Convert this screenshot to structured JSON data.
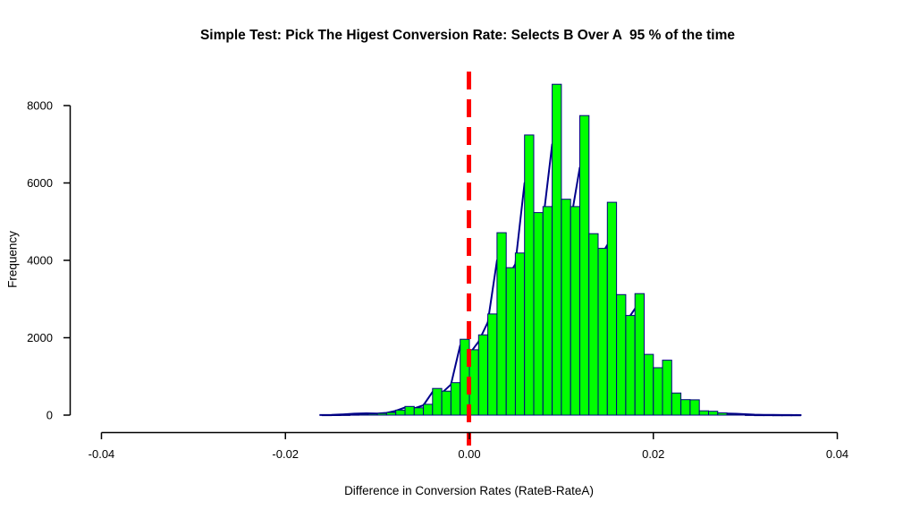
{
  "title": "Simple Test: Pick The Higest Conversion Rate: Selects B Over A  95 % of the time",
  "chart_data": {
    "type": "bar",
    "subtype": "histogram",
    "title": "Simple Test: Pick The Higest Conversion Rate: Selects B Over A  95 % of the time",
    "xlabel": "Difference in Conversion Rates (RateB-RateA)",
    "ylabel": "Frequency",
    "xlim": [
      -0.04,
      0.04
    ],
    "ylim": [
      0,
      8000
    ],
    "grid": false,
    "legend": "none",
    "x_ticks": [
      {
        "v": -0.04,
        "label": "-0.04"
      },
      {
        "v": -0.02,
        "label": "-0.02"
      },
      {
        "v": 0.0,
        "label": "0.00"
      },
      {
        "v": 0.02,
        "label": "0.02"
      },
      {
        "v": 0.04,
        "label": "0.04"
      }
    ],
    "y_ticks": [
      {
        "v": 0,
        "label": "0"
      },
      {
        "v": 2000,
        "label": "2000"
      },
      {
        "v": 4000,
        "label": "4000"
      },
      {
        "v": 6000,
        "label": "6000"
      },
      {
        "v": 8000,
        "label": "8000"
      }
    ],
    "bin_start": -0.016,
    "bin_width": 0.001,
    "frequencies": [
      4,
      6,
      10,
      16,
      25,
      30,
      45,
      70,
      130,
      225,
      190,
      280,
      690,
      620,
      840,
      1960,
      1690,
      2075,
      2615,
      4715,
      3810,
      4190,
      7240,
      5235,
      5390,
      8550,
      5580,
      5390,
      7740,
      4690,
      4310,
      5500,
      3115,
      2575,
      3140,
      1570,
      1225,
      1420,
      570,
      400,
      395,
      110,
      100,
      55,
      25,
      20,
      10,
      5,
      4,
      3,
      2,
      2
    ],
    "bar_fill": "#00FF00",
    "bar_border": "#000080",
    "vline": {
      "x": 0.0,
      "color": "#FF0000",
      "style": "dashed",
      "width": 5
    },
    "curve": {
      "color": "#00008B",
      "points": [
        [
          -0.0163,
          2
        ],
        [
          -0.015,
          8
        ],
        [
          -0.0138,
          18
        ],
        [
          -0.0125,
          38
        ],
        [
          -0.0112,
          46
        ],
        [
          -0.01,
          40
        ],
        [
          -0.009,
          58
        ],
        [
          -0.008,
          110
        ],
        [
          -0.007,
          200
        ],
        [
          -0.006,
          175
        ],
        [
          -0.005,
          255
        ],
        [
          -0.004,
          600
        ],
        [
          -0.003,
          570
        ],
        [
          -0.002,
          790
        ],
        [
          -0.001,
          1800
        ],
        [
          0.0,
          1580
        ],
        [
          0.001,
          1900
        ],
        [
          0.002,
          2400
        ],
        [
          0.003,
          4000
        ],
        [
          0.004,
          3500
        ],
        [
          0.005,
          3900
        ],
        [
          0.006,
          6000
        ],
        [
          0.007,
          4900
        ],
        [
          0.008,
          5000
        ],
        [
          0.009,
          7000
        ],
        [
          0.01,
          5200
        ],
        [
          0.011,
          5000
        ],
        [
          0.012,
          6400
        ],
        [
          0.013,
          4400
        ],
        [
          0.014,
          4000
        ],
        [
          0.015,
          4400
        ],
        [
          0.016,
          2950
        ],
        [
          0.017,
          2400
        ],
        [
          0.018,
          2750
        ],
        [
          0.019,
          1450
        ],
        [
          0.02,
          1100
        ],
        [
          0.021,
          1200
        ],
        [
          0.022,
          480
        ],
        [
          0.023,
          330
        ],
        [
          0.024,
          300
        ],
        [
          0.025,
          95
        ],
        [
          0.026,
          78
        ],
        [
          0.027,
          48
        ],
        [
          0.028,
          40
        ],
        [
          0.029,
          34
        ],
        [
          0.03,
          22
        ],
        [
          0.031,
          12
        ],
        [
          0.032,
          8
        ],
        [
          0.033,
          5
        ],
        [
          0.034,
          3
        ],
        [
          0.035,
          2
        ],
        [
          0.0361,
          1
        ]
      ]
    }
  }
}
